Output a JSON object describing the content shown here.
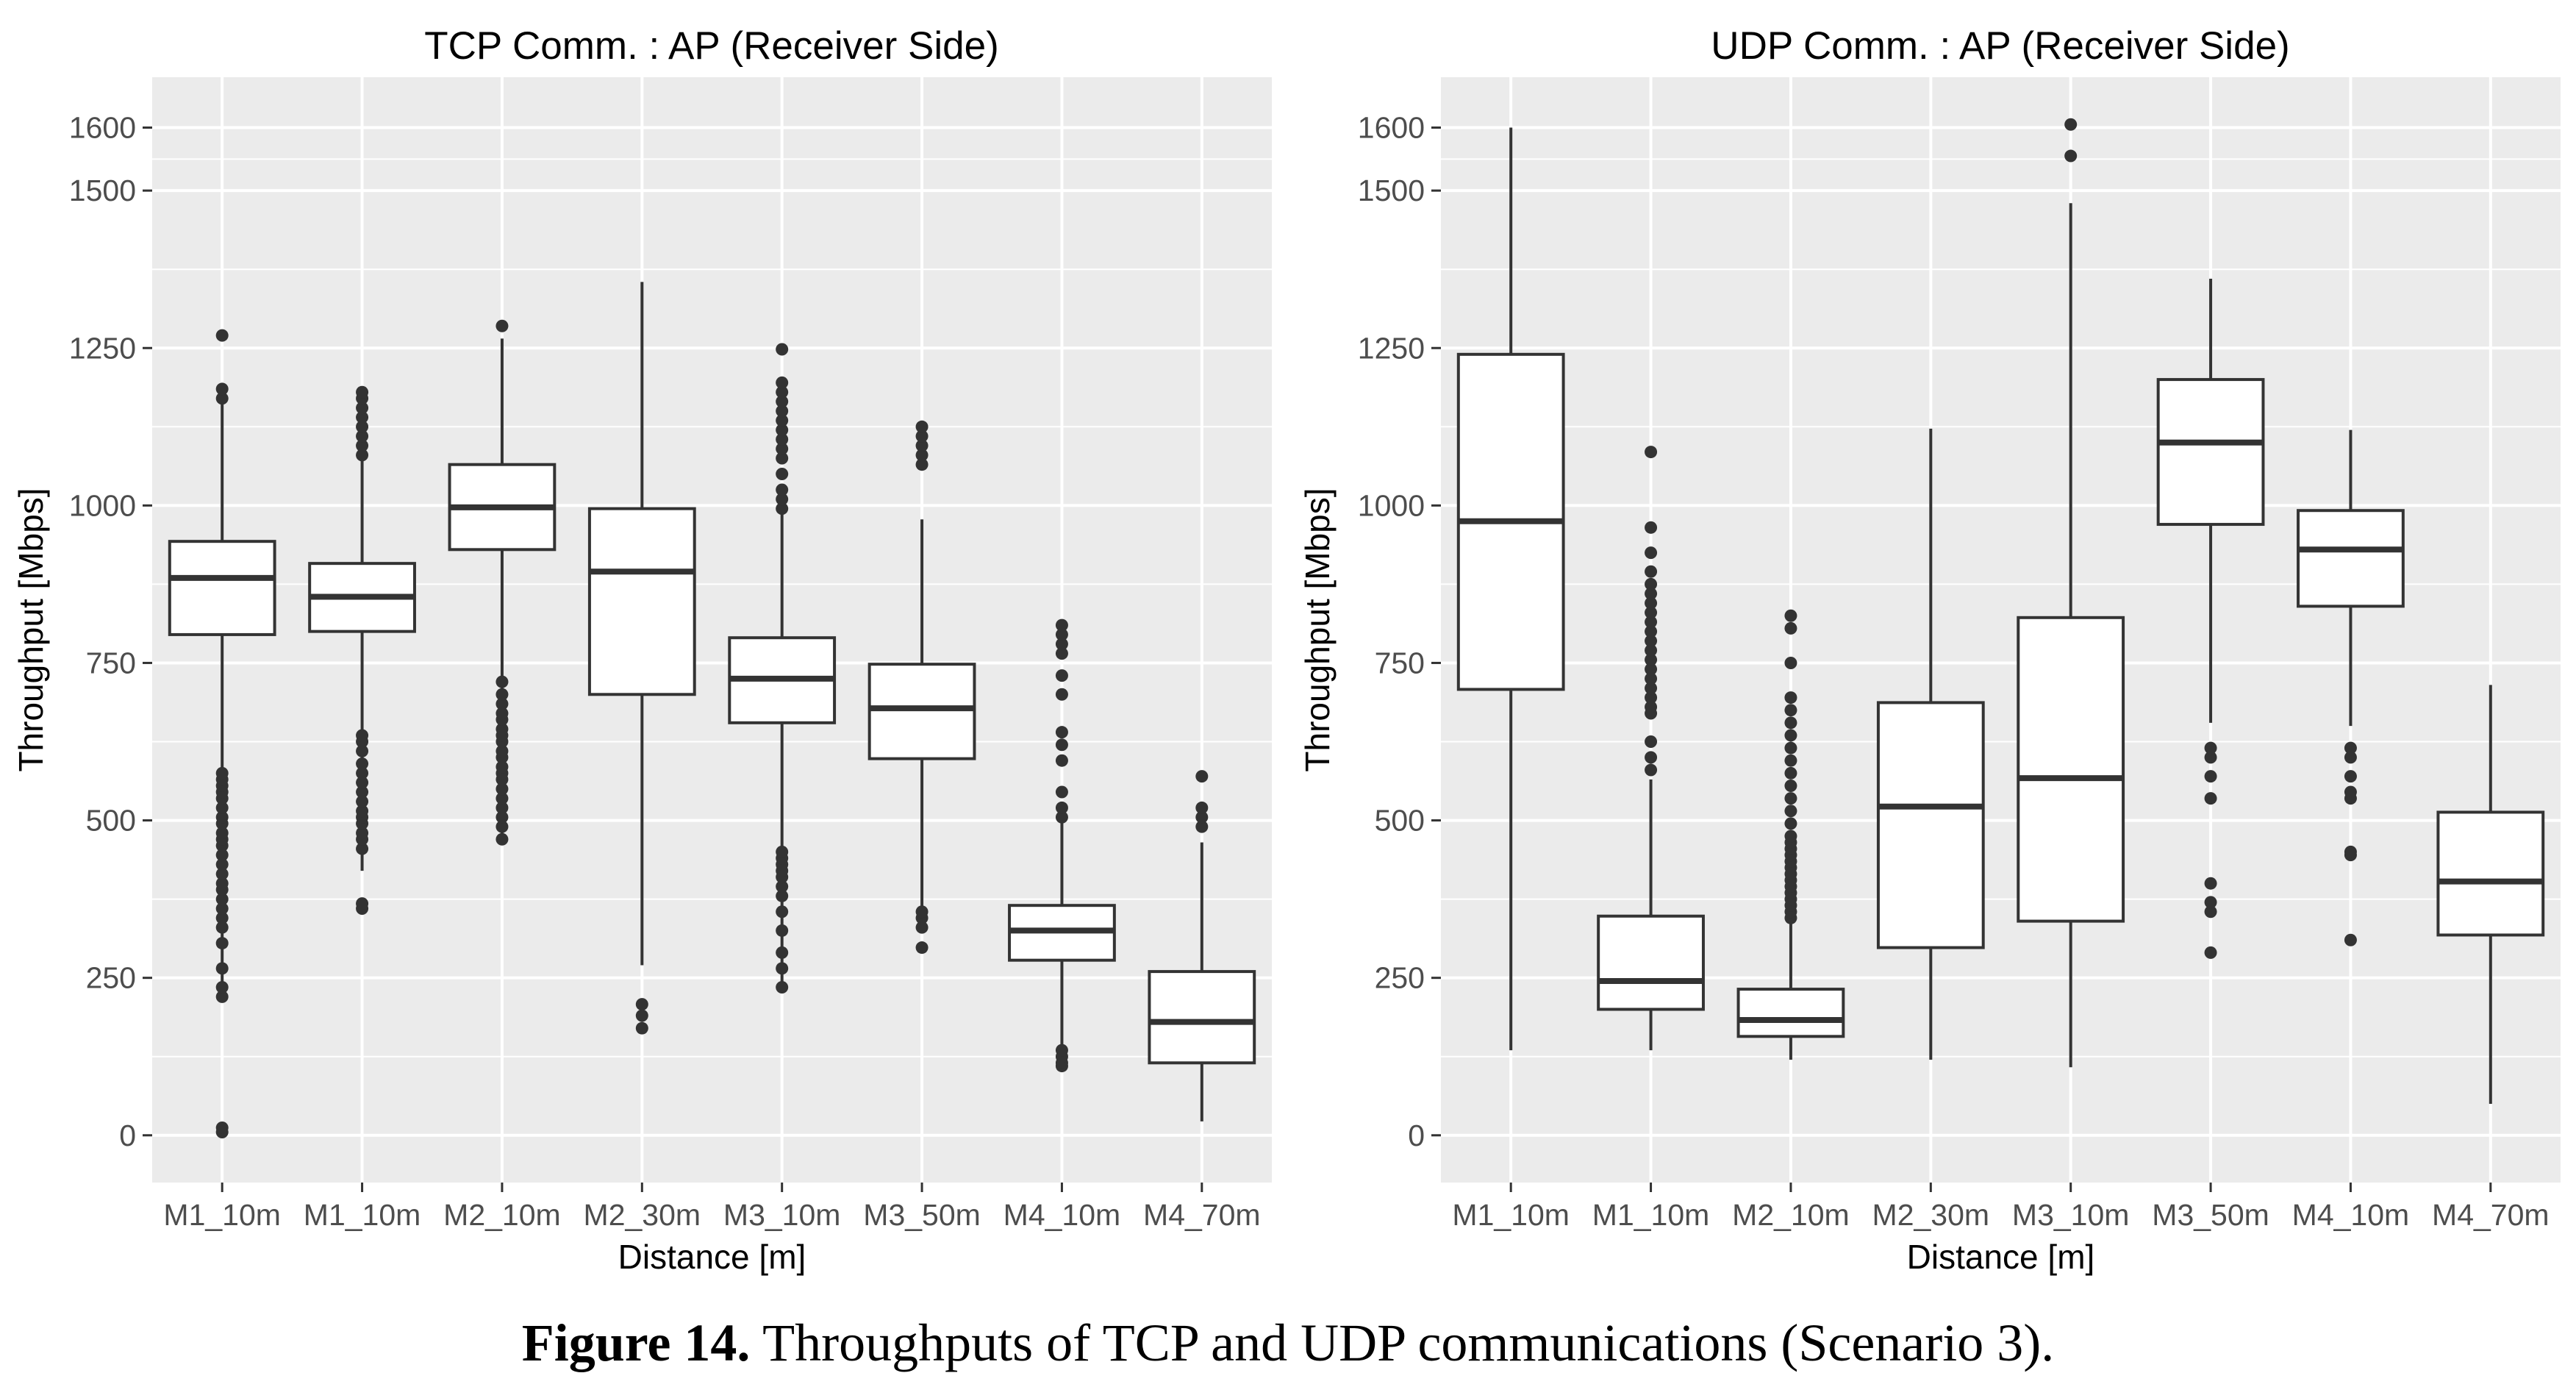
{
  "chart_data": [
    {
      "type": "boxplot",
      "title": "TCP Comm. : AP (Receiver Side)",
      "xlabel": "Distance [m]",
      "ylabel": "Throughput [Mbps]",
      "ylim": [
        -75,
        1680
      ],
      "yticks": [
        0,
        250,
        500,
        750,
        1000,
        1250,
        1500,
        1600
      ],
      "categories": [
        "M1_10m",
        "M1_10m",
        "M2_10m",
        "M2_30m",
        "M3_10m",
        "M3_50m",
        "M4_10m",
        "M4_70m"
      ],
      "boxes": [
        {
          "whisker_low": 225,
          "q1": 795,
          "median": 885,
          "q3": 943,
          "whisker_high": 1165,
          "outliers": [
            5,
            12,
            220,
            235,
            265,
            305,
            330,
            345,
            360,
            375,
            390,
            400,
            415,
            430,
            445,
            460,
            470,
            480,
            495,
            505,
            520,
            535,
            545,
            555,
            565,
            575,
            1170,
            1185,
            1270
          ]
        },
        {
          "whisker_low": 420,
          "q1": 800,
          "median": 855,
          "q3": 908,
          "whisker_high": 1075,
          "outliers": [
            360,
            368,
            455,
            470,
            480,
            495,
            505,
            515,
            530,
            545,
            560,
            575,
            590,
            610,
            625,
            635,
            1080,
            1095,
            1110,
            1125,
            1140,
            1155,
            1170,
            1180
          ]
        },
        {
          "whisker_low": 470,
          "q1": 930,
          "median": 997,
          "q3": 1065,
          "whisker_high": 1265,
          "outliers": [
            470,
            490,
            505,
            520,
            535,
            550,
            565,
            575,
            585,
            600,
            610,
            625,
            635,
            645,
            660,
            670,
            685,
            700,
            720,
            1285
          ]
        },
        {
          "whisker_low": 270,
          "q1": 700,
          "median": 895,
          "q3": 995,
          "whisker_high": 1355,
          "outliers": [
            170,
            190,
            208
          ]
        },
        {
          "whisker_low": 235,
          "q1": 655,
          "median": 725,
          "q3": 790,
          "whisker_high": 990,
          "outliers": [
            235,
            265,
            290,
            325,
            355,
            380,
            395,
            410,
            420,
            430,
            440,
            450,
            995,
            1010,
            1025,
            1050,
            1075,
            1090,
            1105,
            1120,
            1135,
            1150,
            1165,
            1180,
            1195,
            1248
          ]
        },
        {
          "whisker_low": 355,
          "q1": 598,
          "median": 678,
          "q3": 748,
          "whisker_high": 978,
          "outliers": [
            298,
            330,
            345,
            355,
            1065,
            1080,
            1095,
            1110,
            1125
          ]
        },
        {
          "whisker_low": 135,
          "q1": 278,
          "median": 325,
          "q3": 365,
          "whisker_high": 500,
          "outliers": [
            110,
            115,
            125,
            135,
            505,
            520,
            545,
            595,
            620,
            640,
            700,
            730,
            765,
            780,
            795,
            810
          ]
        },
        {
          "whisker_low": 22,
          "q1": 115,
          "median": 180,
          "q3": 260,
          "whisker_high": 465,
          "outliers": [
            490,
            505,
            520,
            570
          ]
        }
      ]
    },
    {
      "type": "boxplot",
      "title": "UDP Comm. : AP (Receiver Side)",
      "xlabel": "Distance [m]",
      "ylabel": "Throughput [Mbps]",
      "ylim": [
        -75,
        1680
      ],
      "yticks": [
        0,
        250,
        500,
        750,
        1000,
        1250,
        1500,
        1600
      ],
      "categories": [
        "M1_10m",
        "M1_10m",
        "M2_10m",
        "M2_30m",
        "M3_10m",
        "M3_50m",
        "M4_10m",
        "M4_70m"
      ],
      "boxes": [
        {
          "whisker_low": 135,
          "q1": 708,
          "median": 975,
          "q3": 1240,
          "whisker_high": 1600,
          "outliers": []
        },
        {
          "whisker_low": 135,
          "q1": 200,
          "median": 245,
          "q3": 348,
          "whisker_high": 565,
          "outliers": [
            580,
            600,
            625,
            670,
            680,
            695,
            710,
            725,
            740,
            755,
            770,
            785,
            800,
            815,
            830,
            845,
            860,
            875,
            895,
            925,
            965,
            1085
          ]
        },
        {
          "whisker_low": 120,
          "q1": 157,
          "median": 183,
          "q3": 232,
          "whisker_high": 340,
          "outliers": [
            345,
            355,
            365,
            375,
            385,
            395,
            405,
            415,
            425,
            435,
            445,
            455,
            465,
            475,
            495,
            515,
            535,
            555,
            575,
            595,
            615,
            635,
            655,
            675,
            695,
            750,
            805,
            825
          ]
        },
        {
          "whisker_low": 120,
          "q1": 298,
          "median": 522,
          "q3": 687,
          "whisker_high": 1122,
          "outliers": []
        },
        {
          "whisker_low": 108,
          "q1": 340,
          "median": 567,
          "q3": 822,
          "whisker_high": 1480,
          "outliers": [
            1555,
            1605
          ]
        },
        {
          "whisker_low": 655,
          "q1": 970,
          "median": 1100,
          "q3": 1200,
          "whisker_high": 1360,
          "outliers": [
            290,
            355,
            370,
            400,
            535,
            570,
            600,
            615
          ]
        },
        {
          "whisker_low": 650,
          "q1": 840,
          "median": 930,
          "q3": 992,
          "whisker_high": 1120,
          "outliers": [
            310,
            445,
            450,
            535,
            545,
            570,
            600,
            615
          ]
        },
        {
          "whisker_low": 50,
          "q1": 318,
          "median": 403,
          "q3": 513,
          "whisker_high": 715,
          "outliers": []
        }
      ]
    }
  ],
  "caption": {
    "label": "Figure 14.",
    "text": "Throughputs of TCP and UDP communications (Scenario 3)."
  },
  "colors": {
    "panel_background": "#ebebeb",
    "grid": "#ffffff",
    "box_fill": "#ffffff",
    "box_stroke": "#333333",
    "tick_text": "#4d4d4d",
    "text": "#000000"
  }
}
